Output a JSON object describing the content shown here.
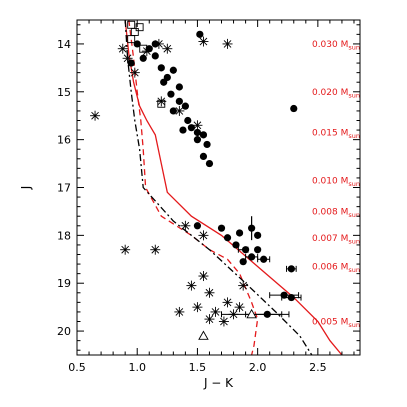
{
  "chart_data": {
    "type": "scatter",
    "xlabel": "J − K",
    "ylabel": "J",
    "xlim": [
      0.5,
      2.85
    ],
    "ylim": [
      20.5,
      13.5
    ],
    "y_inverted": true,
    "x_ticks": [
      "0.5",
      "1.0",
      "1.5",
      "2.0",
      "2.5"
    ],
    "y_ticks": [
      "14",
      "15",
      "16",
      "17",
      "18",
      "19",
      "20"
    ],
    "annotation_color": "#e41a1c",
    "mass_labels": [
      {
        "J": 14.0,
        "value": "0.030",
        "unit": "M",
        "sub": "sun"
      },
      {
        "J": 15.0,
        "value": "0.020",
        "unit": "M",
        "sub": "sun"
      },
      {
        "J": 15.85,
        "value": "0.015",
        "unit": "M",
        "sub": "sun"
      },
      {
        "J": 16.85,
        "value": "0.010",
        "unit": "M",
        "sub": "sun"
      },
      {
        "J": 17.5,
        "value": "0.008",
        "unit": "M",
        "sub": "sun"
      },
      {
        "J": 18.05,
        "value": "0.007",
        "unit": "M",
        "sub": "sun"
      },
      {
        "J": 18.65,
        "value": "0.006",
        "unit": "M",
        "sub": "sun"
      },
      {
        "J": 19.8,
        "value": "0.005",
        "unit": "M",
        "sub": "sun"
      }
    ],
    "filled_circles": [
      [
        1.0,
        14.0
      ],
      [
        1.1,
        14.1
      ],
      [
        1.05,
        14.3
      ],
      [
        0.95,
        14.4
      ],
      [
        1.15,
        14.25
      ],
      [
        1.2,
        14.5
      ],
      [
        1.25,
        14.7
      ],
      [
        1.3,
        14.55
      ],
      [
        1.22,
        14.8
      ],
      [
        1.35,
        14.9
      ],
      [
        1.28,
        15.05
      ],
      [
        1.35,
        15.2
      ],
      [
        1.4,
        15.3
      ],
      [
        1.3,
        15.4
      ],
      [
        1.42,
        15.6
      ],
      [
        1.45,
        15.75
      ],
      [
        1.38,
        15.8
      ],
      [
        1.5,
        15.85
      ],
      [
        1.55,
        15.9
      ],
      [
        1.5,
        16.0
      ],
      [
        1.58,
        16.1
      ],
      [
        1.55,
        16.35
      ],
      [
        1.6,
        16.5
      ],
      [
        1.52,
        13.8
      ],
      [
        1.15,
        14.0
      ],
      [
        1.5,
        17.8
      ],
      [
        1.7,
        17.85
      ],
      [
        1.75,
        18.05
      ],
      [
        1.82,
        18.2
      ],
      [
        1.85,
        17.95
      ],
      [
        1.9,
        18.3
      ],
      [
        1.95,
        18.45
      ],
      [
        1.88,
        18.55
      ],
      [
        2.0,
        18.3
      ],
      [
        2.05,
        18.5
      ],
      [
        1.95,
        17.85
      ],
      [
        2.0,
        18.0
      ],
      [
        2.28,
        18.7
      ],
      [
        2.22,
        19.25
      ],
      [
        2.28,
        19.3
      ],
      [
        2.08,
        19.65
      ],
      [
        2.3,
        15.35
      ]
    ],
    "asterisks": [
      [
        0.65,
        15.5
      ],
      [
        0.88,
        14.1
      ],
      [
        0.92,
        14.3
      ],
      [
        0.98,
        14.6
      ],
      [
        1.08,
        14.15
      ],
      [
        1.18,
        14.0
      ],
      [
        1.25,
        14.1
      ],
      [
        1.2,
        15.2
      ],
      [
        1.35,
        15.4
      ],
      [
        1.5,
        15.7
      ],
      [
        1.55,
        13.95
      ],
      [
        1.75,
        14.0
      ],
      [
        0.9,
        18.3
      ],
      [
        1.15,
        18.3
      ],
      [
        1.4,
        17.8
      ],
      [
        1.55,
        18.0
      ],
      [
        1.45,
        19.05
      ],
      [
        1.6,
        19.2
      ],
      [
        1.5,
        19.5
      ],
      [
        1.65,
        19.6
      ],
      [
        1.75,
        19.4
      ],
      [
        1.8,
        19.65
      ],
      [
        1.6,
        19.75
      ],
      [
        1.72,
        19.8
      ],
      [
        1.35,
        19.6
      ],
      [
        1.88,
        19.05
      ],
      [
        1.85,
        19.5
      ],
      [
        1.55,
        18.85
      ]
    ],
    "open_squares": [
      [
        0.95,
        13.6
      ],
      [
        0.98,
        13.75
      ],
      [
        1.02,
        13.65
      ],
      [
        0.95,
        13.9
      ],
      [
        1.05,
        14.1
      ],
      [
        1.2,
        15.25
      ]
    ],
    "open_triangles": [
      [
        1.55,
        20.1
      ],
      [
        1.95,
        19.65
      ]
    ],
    "error_bars": [
      {
        "x": 1.95,
        "y": 17.85,
        "xerr": 0.0,
        "yerr": 0.25
      },
      {
        "x": 1.88,
        "y": 18.3,
        "xerr": 0.04,
        "yerr": 0.0
      },
      {
        "x": 1.95,
        "y": 18.45,
        "xerr": 0.05,
        "yerr": 0.0
      },
      {
        "x": 2.05,
        "y": 18.5,
        "xerr": 0.05,
        "yerr": 0.0
      },
      {
        "x": 2.28,
        "y": 18.7,
        "xerr": 0.04,
        "yerr": 0.0
      },
      {
        "x": 2.22,
        "y": 19.25,
        "xerr": 0.12,
        "yerr": 0.0
      },
      {
        "x": 2.28,
        "y": 19.3,
        "xerr": 0.08,
        "yerr": 0.0
      },
      {
        "x": 2.08,
        "y": 19.65,
        "xerr": 0.18,
        "yerr": 0.0
      },
      {
        "x": 1.95,
        "y": 19.65,
        "xerr": 0.25,
        "yerr": 0.0
      }
    ],
    "curves": [
      {
        "style": "solid",
        "color": "#e41a1c",
        "points": [
          [
            0.9,
            13.5
          ],
          [
            0.93,
            14.2
          ],
          [
            0.97,
            14.8
          ],
          [
            1.02,
            15.3
          ],
          [
            1.08,
            15.6
          ],
          [
            1.15,
            15.9
          ],
          [
            1.2,
            16.5
          ],
          [
            1.25,
            17.1
          ],
          [
            1.45,
            17.6
          ],
          [
            1.7,
            18.0
          ],
          [
            2.0,
            18.65
          ],
          [
            2.3,
            19.3
          ],
          [
            2.5,
            19.8
          ],
          [
            2.6,
            20.2
          ],
          [
            2.7,
            20.5
          ]
        ]
      },
      {
        "style": "dashed",
        "color": "#e41a1c",
        "points": [
          [
            0.93,
            13.5
          ],
          [
            0.97,
            14.3
          ],
          [
            1.0,
            15.0
          ],
          [
            1.03,
            15.6
          ],
          [
            1.05,
            16.2
          ],
          [
            1.07,
            17.0
          ],
          [
            1.2,
            17.6
          ],
          [
            1.45,
            18.0
          ],
          [
            1.6,
            18.3
          ],
          [
            1.75,
            18.5
          ],
          [
            1.85,
            18.8
          ],
          [
            1.95,
            19.4
          ],
          [
            2.0,
            19.75
          ],
          [
            1.97,
            20.3
          ],
          [
            1.95,
            20.5
          ]
        ]
      },
      {
        "style": "dashdot",
        "color": "#000000",
        "points": [
          [
            0.9,
            13.5
          ],
          [
            0.92,
            14.3
          ],
          [
            0.95,
            15.0
          ],
          [
            0.98,
            15.6
          ],
          [
            1.02,
            16.2
          ],
          [
            1.05,
            17.0
          ],
          [
            1.3,
            17.7
          ],
          [
            1.6,
            18.3
          ],
          [
            1.9,
            19.0
          ],
          [
            2.15,
            19.6
          ],
          [
            2.35,
            20.1
          ],
          [
            2.45,
            20.5
          ]
        ]
      }
    ]
  }
}
